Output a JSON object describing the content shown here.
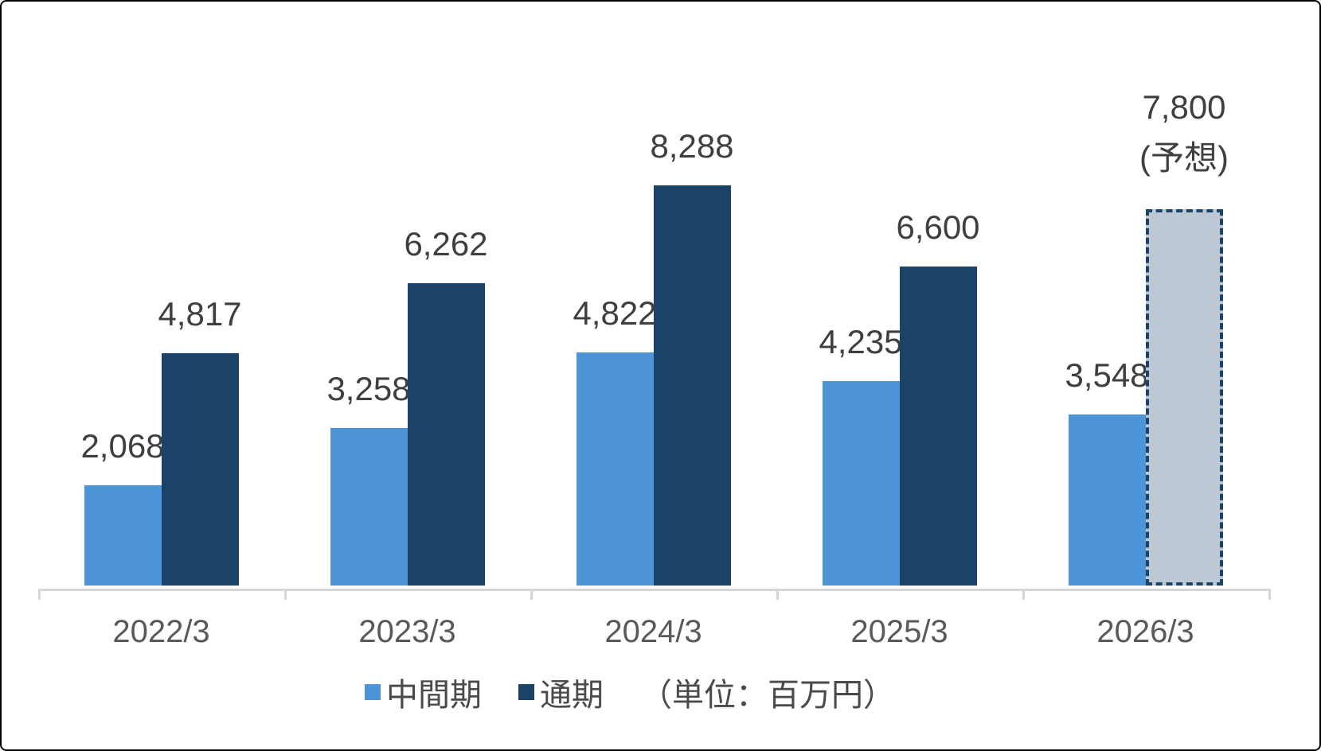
{
  "chart_data": {
    "type": "bar",
    "title": "",
    "categories": [
      "2022/3",
      "2023/3",
      "2024/3",
      "2025/3",
      "2026/3"
    ],
    "series": [
      {
        "name": "中間期",
        "color": "#4E94D9",
        "values": [
          2068,
          3258,
          4822,
          4235,
          3548
        ],
        "labels": [
          "2,068",
          "3,258",
          "4,822",
          "4,235",
          "3,548"
        ]
      },
      {
        "name": "通期",
        "color": "#1B4368",
        "values": [
          4817,
          6262,
          8288,
          6600,
          7800
        ],
        "labels": [
          "4,817",
          "6,262",
          "8,288",
          "6,600",
          "7,800"
        ]
      }
    ],
    "forecast": {
      "category_index": 4,
      "series_index": 1,
      "note": "(予想)",
      "fill": "#BCC9D5",
      "border_color": "#1B4368"
    },
    "unit_note": "（単位：百万円）",
    "ylim": [
      0,
      9000
    ],
    "grid": false,
    "legend_position": "bottom",
    "axis_color": "#D6D6D6",
    "value_label_color": "#3F3F3F",
    "tick_label_color": "#595959"
  },
  "legend": {
    "items": [
      {
        "label": "中間期",
        "color": "#4E94D9"
      },
      {
        "label": "通期",
        "color": "#1B4368"
      }
    ],
    "unit_note": "（単位：百万円）"
  }
}
